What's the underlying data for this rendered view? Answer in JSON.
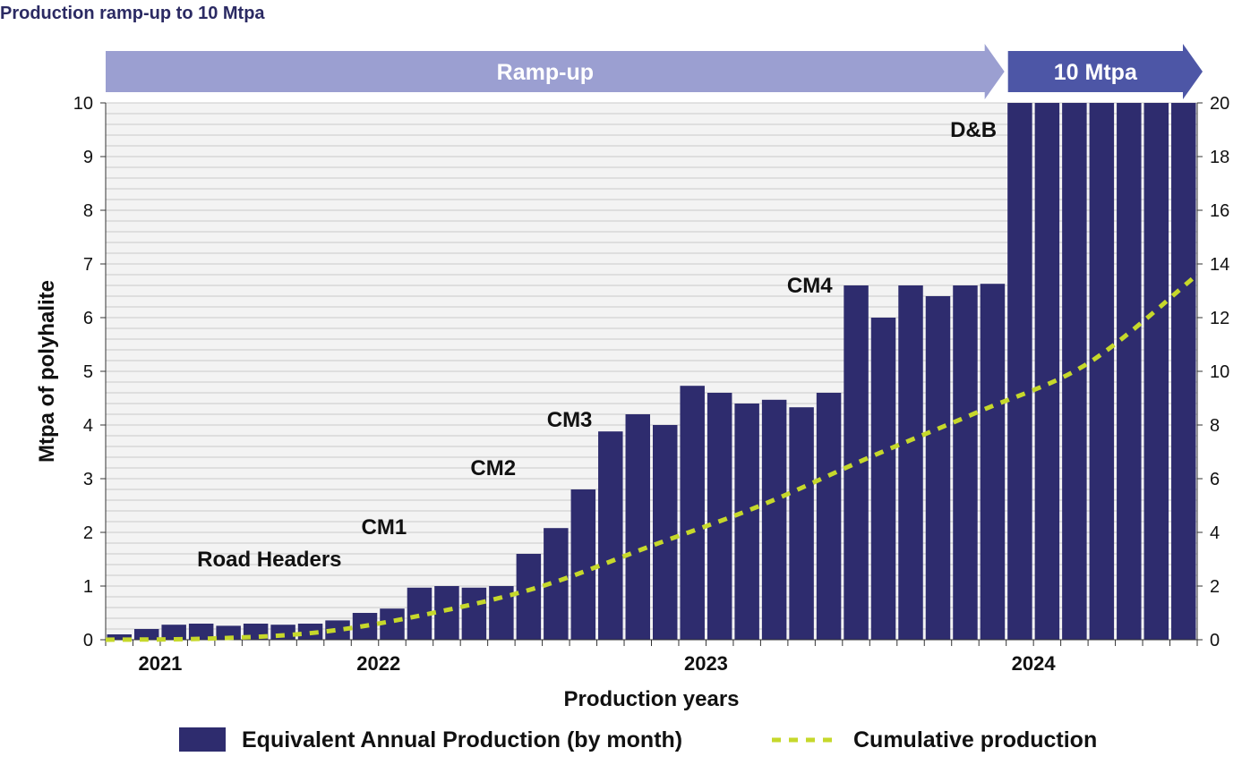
{
  "title": "Production ramp-up to 10 Mtpa",
  "colors": {
    "title": "#2b2a63",
    "bar": "#2e2c6e",
    "cumulative": "#c6d82b",
    "rampup_banner": "#9b9fd1",
    "mtpa_banner": "#4d56a6",
    "gridline": "#c8c8c8"
  },
  "chart_data": {
    "type": "bar",
    "title": "Production ramp-up to 10 Mtpa",
    "xlabel": "Production years",
    "ylabel": "Mtpa of polyhalite",
    "ylim": [
      0,
      10
    ],
    "y2lim": [
      0,
      20
    ],
    "yticks": [
      0,
      1,
      2,
      3,
      4,
      5,
      6,
      7,
      8,
      9,
      10
    ],
    "y2ticks": [
      0,
      2,
      4,
      6,
      8,
      10,
      12,
      14,
      16,
      18,
      20
    ],
    "grid": true,
    "legend_position": "bottom",
    "year_labels": [
      {
        "label": "2021",
        "at_month": 2
      },
      {
        "label": "2022",
        "at_month": 10
      },
      {
        "label": "2023",
        "at_month": 22
      },
      {
        "label": "2024",
        "at_month": 34
      }
    ],
    "phase_banners": [
      {
        "label": "Ramp-up",
        "from_month": 0,
        "to_month": 33
      },
      {
        "label": "10 Mtpa",
        "from_month": 33,
        "to_month": 40
      }
    ],
    "annotations": [
      {
        "text": "Road Headers",
        "at_month": 6,
        "y": 1.5
      },
      {
        "text": "CM1",
        "at_month": 10.2,
        "y": 2.1
      },
      {
        "text": "CM2",
        "at_month": 14.2,
        "y": 3.2
      },
      {
        "text": "CM3",
        "at_month": 17,
        "y": 4.1
      },
      {
        "text": "CM4",
        "at_month": 25.8,
        "y": 6.6
      },
      {
        "text": "D&B",
        "at_month": 31.8,
        "y": 9.5
      }
    ],
    "series": [
      {
        "name": "Equivalent Annual Production (by month)",
        "type": "bar",
        "axis": "left",
        "values": [
          0.1,
          0.2,
          0.28,
          0.3,
          0.26,
          0.3,
          0.28,
          0.3,
          0.36,
          0.5,
          0.58,
          0.97,
          1.0,
          0.97,
          1.0,
          1.6,
          2.08,
          2.8,
          3.88,
          4.2,
          4.0,
          4.73,
          4.6,
          4.4,
          4.47,
          4.33,
          4.6,
          6.6,
          6.0,
          6.6,
          6.4,
          6.6,
          6.63,
          10,
          10,
          10,
          10,
          10,
          10,
          10
        ]
      },
      {
        "name": "Cumulative production",
        "type": "line",
        "axis": "right",
        "x": [
          0,
          4,
          8,
          12,
          16,
          20,
          24,
          28,
          32,
          36,
          40
        ],
        "y": [
          0.0,
          0.05,
          0.3,
          1.0,
          2.0,
          3.5,
          5.0,
          6.8,
          8.5,
          10.3,
          13.6
        ]
      }
    ]
  }
}
